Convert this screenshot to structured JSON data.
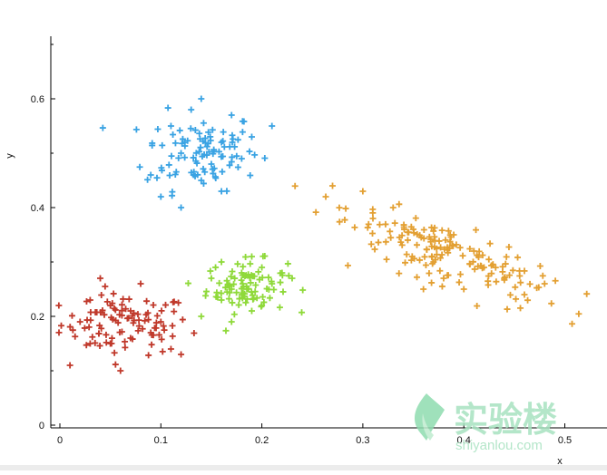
{
  "chart_data": {
    "type": "scatter",
    "title": "",
    "xlabel": "x",
    "ylabel": "y",
    "xlim": [
      -0.01,
      0.54
    ],
    "ylim": [
      -0.01,
      0.76
    ],
    "xticks": [
      "0",
      "0.1",
      "0.2",
      "0.3",
      "0.4",
      "0.5"
    ],
    "yticks": [
      "0",
      "0.2",
      "0.4",
      "0.6"
    ],
    "xtick_values": [
      0,
      0.1,
      0.2,
      0.3,
      0.4,
      0.5
    ],
    "ytick_values": [
      0,
      0.2,
      0.4,
      0.6
    ],
    "marker": "plus",
    "grid": false,
    "legend": "none",
    "series": [
      {
        "color": "#c0392b",
        "center": [
          0.065,
          0.185
        ],
        "spread": [
          0.04,
          0.035
        ],
        "count": 110,
        "sample_points": [
          [
            0.01,
            0.11
          ],
          [
            0.02,
            0.19
          ],
          [
            0.03,
            0.23
          ],
          [
            0.04,
            0.27
          ],
          [
            0.05,
            0.15
          ],
          [
            0.06,
            0.1
          ],
          [
            0.07,
            0.21
          ],
          [
            0.08,
            0.26
          ],
          [
            0.09,
            0.17
          ],
          [
            0.1,
            0.19
          ],
          [
            0.11,
            0.14
          ],
          [
            0.12,
            0.13
          ],
          [
            0.03,
            0.15
          ],
          [
            0.05,
            0.22
          ],
          [
            0.07,
            0.16
          ]
        ]
      },
      {
        "color": "#3aa3e3",
        "center": [
          0.14,
          0.505
        ],
        "spread": [
          0.035,
          0.045
        ],
        "count": 110,
        "sample_points": [
          [
            0.09,
            0.46
          ],
          [
            0.1,
            0.42
          ],
          [
            0.11,
            0.55
          ],
          [
            0.12,
            0.4
          ],
          [
            0.13,
            0.58
          ],
          [
            0.14,
            0.6
          ],
          [
            0.15,
            0.48
          ],
          [
            0.16,
            0.52
          ],
          [
            0.17,
            0.57
          ],
          [
            0.18,
            0.49
          ],
          [
            0.19,
            0.53
          ],
          [
            0.21,
            0.55
          ],
          [
            0.12,
            0.5
          ],
          [
            0.14,
            0.45
          ],
          [
            0.16,
            0.43
          ]
        ]
      },
      {
        "color": "#8fd93a",
        "center": [
          0.185,
          0.255
        ],
        "spread": [
          0.025,
          0.03
        ],
        "count": 100,
        "sample_points": [
          [
            0.14,
            0.2
          ],
          [
            0.15,
            0.27
          ],
          [
            0.16,
            0.3
          ],
          [
            0.17,
            0.19
          ],
          [
            0.18,
            0.24
          ],
          [
            0.19,
            0.31
          ],
          [
            0.2,
            0.22
          ],
          [
            0.21,
            0.26
          ],
          [
            0.22,
            0.28
          ],
          [
            0.23,
            0.27
          ],
          [
            0.17,
            0.25
          ],
          [
            0.19,
            0.21
          ],
          [
            0.2,
            0.29
          ],
          [
            0.16,
            0.23
          ],
          [
            0.18,
            0.28
          ]
        ]
      },
      {
        "color": "#e3a033",
        "center": [
          0.38,
          0.32
        ],
        "spread": [
          0.055,
          0.04
        ],
        "count": 170,
        "sample_points": [
          [
            0.27,
            0.44
          ],
          [
            0.3,
            0.43
          ],
          [
            0.31,
            0.38
          ],
          [
            0.33,
            0.4
          ],
          [
            0.35,
            0.36
          ],
          [
            0.37,
            0.3
          ],
          [
            0.38,
            0.27
          ],
          [
            0.4,
            0.25
          ],
          [
            0.42,
            0.29
          ],
          [
            0.44,
            0.27
          ],
          [
            0.46,
            0.24
          ],
          [
            0.48,
            0.26
          ],
          [
            0.39,
            0.35
          ],
          [
            0.41,
            0.32
          ],
          [
            0.36,
            0.25
          ]
        ]
      }
    ]
  },
  "watermark": {
    "brand_cn": "实验楼",
    "brand_url": "shiyanlou.com",
    "colors": {
      "logo": "#8fdcb0",
      "text": "#a7e2c0"
    }
  },
  "colors": {
    "axis": "#000000",
    "background": "#ffffff"
  }
}
